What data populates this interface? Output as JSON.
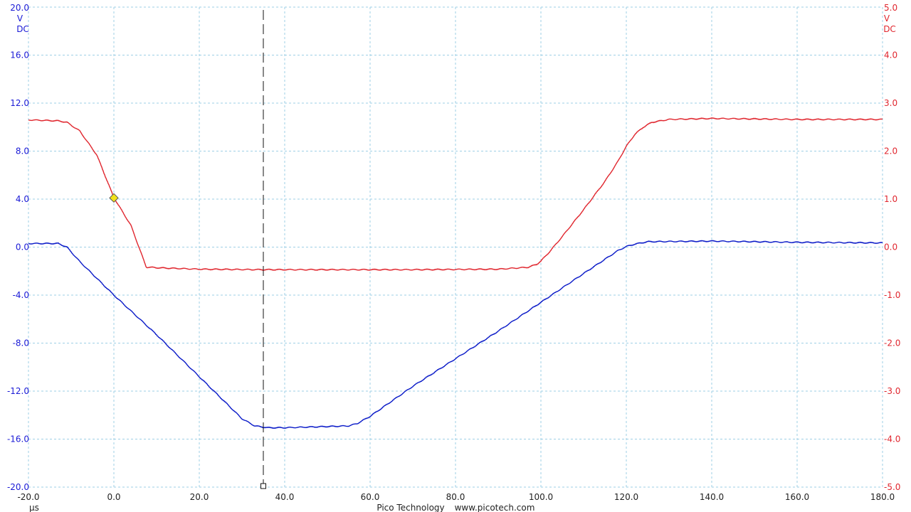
{
  "chart_data": {
    "type": "line",
    "x_unit": "µs",
    "x_range": [
      -20,
      180
    ],
    "x_ticks": [
      "-20.0",
      "0.0",
      "20.0",
      "40.0",
      "60.0",
      "80.0",
      "100.0",
      "120.0",
      "140.0",
      "160.0",
      "180.0"
    ],
    "left_axis": {
      "range": [
        -20,
        20
      ],
      "unit": "V",
      "coupling": "DC",
      "ticks": [
        "20.0",
        "16.0",
        "12.0",
        "8.0",
        "4.0",
        "0.0",
        "-4.0",
        "-8.0",
        "-12.0",
        "-16.0",
        "-20.0"
      ],
      "color": "#1a1ad6"
    },
    "right_axis": {
      "range": [
        -5,
        5
      ],
      "unit": "V",
      "coupling": "DC",
      "ticks": [
        "5.0",
        "4.0",
        "3.0",
        "2.0",
        "1.0",
        "0.0",
        "-1.0",
        "-2.0",
        "-3.0",
        "-4.0",
        "-5.0"
      ],
      "color": "#e0262e"
    },
    "grid": true,
    "series": [
      {
        "axis": "left",
        "color": "#0a1ac8",
        "x": [
          -20,
          -13,
          -11,
          -8,
          0,
          10,
          20,
          30,
          33,
          36,
          40,
          50,
          55,
          57,
          60,
          70,
          80,
          90,
          100,
          110,
          118,
          120,
          122,
          125,
          140,
          160,
          180
        ],
        "y": [
          0.3,
          0.3,
          0.0,
          -1.2,
          -4.0,
          -7.3,
          -10.8,
          -14.3,
          -14.9,
          -15.05,
          -15.05,
          -14.95,
          -14.9,
          -14.7,
          -14.1,
          -11.6,
          -9.3,
          -7.0,
          -4.6,
          -2.2,
          -0.3,
          0.05,
          0.25,
          0.45,
          0.5,
          0.4,
          0.35
        ]
      },
      {
        "axis": "right",
        "color": "#e0262e",
        "x": [
          -20,
          -13,
          -11,
          -8,
          -4,
          0,
          4,
          7.6,
          8.5,
          10,
          20,
          35,
          50,
          70,
          90,
          97,
          99,
          100,
          102,
          105,
          110,
          115,
          118,
          120,
          122,
          124,
          126,
          130,
          140,
          160,
          180
        ],
        "y": [
          2.65,
          2.63,
          2.6,
          2.42,
          1.92,
          1.03,
          0.45,
          -0.42,
          -0.42,
          -0.43,
          -0.46,
          -0.47,
          -0.47,
          -0.47,
          -0.46,
          -0.42,
          -0.36,
          -0.29,
          -0.1,
          0.22,
          0.78,
          1.37,
          1.78,
          2.1,
          2.35,
          2.5,
          2.6,
          2.66,
          2.68,
          2.66,
          2.66
        ]
      }
    ],
    "trigger": {
      "x": 0,
      "y_left": 4.1
    },
    "cursor": {
      "x": 35
    }
  },
  "footer": {
    "brand": "Pico Technology",
    "url": "www.picotech.com"
  }
}
